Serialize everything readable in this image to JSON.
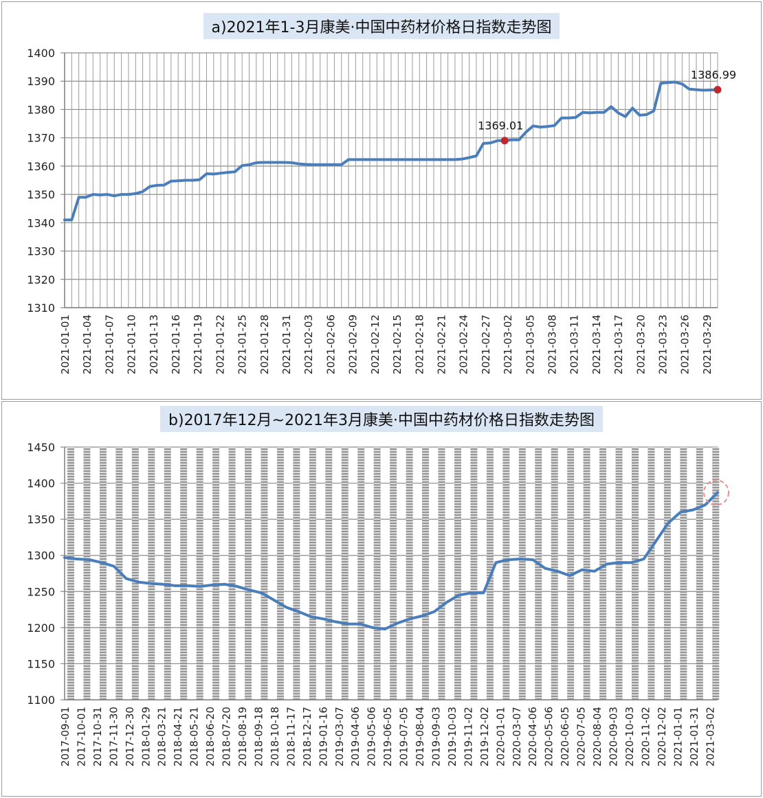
{
  "chart_data": [
    {
      "id": "a",
      "type": "line",
      "title": "a)2021年1-3月康美·中国中药材价格日指数走势图",
      "xlabel": "",
      "ylabel": "",
      "ylim": [
        1310,
        1400
      ],
      "yticks": [
        1310,
        1320,
        1330,
        1340,
        1350,
        1360,
        1370,
        1380,
        1390,
        1400
      ],
      "grid": true,
      "line_color": "#4a7ebb",
      "marker_color": "#c0272d",
      "x_tick_labels": [
        "2021-01-01",
        "2021-01-04",
        "2021-01-07",
        "2021-01-10",
        "2021-01-13",
        "2021-01-16",
        "2021-01-19",
        "2021-01-22",
        "2021-01-25",
        "2021-01-28",
        "2021-01-31",
        "2021-02-03",
        "2021-02-06",
        "2021-02-09",
        "2021-02-12",
        "2021-02-15",
        "2021-02-18",
        "2021-02-21",
        "2021-02-24",
        "2021-02-27",
        "2021-03-02",
        "2021-03-05",
        "2021-03-08",
        "2021-03-11",
        "2021-03-14",
        "2021-03-17",
        "2021-03-20",
        "2021-03-23",
        "2021-03-26",
        "2021-03-29"
      ],
      "series": [
        {
          "values": [
            1341,
            1341,
            1349,
            1349,
            1350,
            1349.8,
            1350,
            1349.5,
            1350,
            1350,
            1350.3,
            1351,
            1352.8,
            1353.2,
            1353.3,
            1354.7,
            1354.8,
            1355,
            1355,
            1355.2,
            1357.3,
            1357.2,
            1357.5,
            1357.8,
            1358,
            1360.2,
            1360.5,
            1361.2,
            1361.3,
            1361.3,
            1361.3,
            1361.3,
            1361.2,
            1360.8,
            1360.6,
            1360.5,
            1360.5,
            1360.5,
            1360.5,
            1360.5,
            1362.3,
            1362.3,
            1362.3,
            1362.3,
            1362.3,
            1362.3,
            1362.3,
            1362.3,
            1362.3,
            1362.3,
            1362.3,
            1362.3,
            1362.3,
            1362.3,
            1362.3,
            1362.3,
            1362.5,
            1363,
            1363.6,
            1368,
            1368.2,
            1369,
            1369.01,
            1369.3,
            1369.3,
            1372,
            1374.2,
            1373.8,
            1374,
            1374.3,
            1377,
            1377,
            1377.2,
            1379,
            1378.8,
            1379,
            1379,
            1381,
            1378.8,
            1377.5,
            1380.5,
            1378,
            1378.2,
            1379.5,
            1389.3,
            1389.5,
            1389.7,
            1389,
            1387.2,
            1387,
            1386.8,
            1386.9,
            1386.99
          ]
        }
      ],
      "annotations": [
        {
          "label": "1369.01",
          "index": 62,
          "value": 1369.01
        },
        {
          "label": "1386.99",
          "index": 92,
          "value": 1386.99
        }
      ]
    },
    {
      "id": "b",
      "type": "line",
      "title": "b)2017年12月~2021年3月康美·中国中药材价格日指数走势图",
      "xlabel": "",
      "ylabel": "",
      "ylim": [
        1100,
        1450
      ],
      "yticks": [
        1100,
        1150,
        1200,
        1250,
        1300,
        1350,
        1400,
        1450
      ],
      "grid": true,
      "line_color": "#4a7ebb",
      "highlight_color": "#e8908c",
      "x_tick_labels": [
        "2017-09-01",
        "2017-10-01",
        "2017-10-31",
        "2017-11-30",
        "2017-12-30",
        "2018-01-29",
        "2018-03-21",
        "2018-04-21",
        "2018-05-21",
        "2018-06-20",
        "2018-07-20",
        "2018-08-19",
        "2018-09-18",
        "2018-10-18",
        "2018-11-17",
        "2018-12-17",
        "2019-01-16",
        "2019-03-07",
        "2019-04-06",
        "2019-05-06",
        "2019-06-05",
        "2019-07-05",
        "2019-08-04",
        "2019-09-03",
        "2019-10-03",
        "2019-11-02",
        "2019-12-02",
        "2020-01-01",
        "2020-03-07",
        "2020-04-06",
        "2020-05-06",
        "2020-06-05",
        "2020-07-05",
        "2020-08-04",
        "2020-09-03",
        "2020-10-03",
        "2020-11-02",
        "2020-12-02",
        "2021-01-01",
        "2021-01-31",
        "2021-03-02"
      ],
      "series": [
        {
          "values": [
            1297,
            1295,
            1294,
            1290,
            1285,
            1268,
            1263,
            1261,
            1260,
            1258,
            1258,
            1257,
            1259,
            1260,
            1257,
            1252,
            1248,
            1238,
            1228,
            1222,
            1215,
            1212,
            1208,
            1205,
            1205,
            1200,
            1198,
            1206,
            1212,
            1216,
            1222,
            1235,
            1245,
            1248,
            1248,
            1290,
            1294,
            1295,
            1294,
            1282,
            1278,
            1272,
            1280,
            1278,
            1288,
            1290,
            1290,
            1295,
            1320,
            1345,
            1360,
            1363,
            1370,
            1387
          ]
        }
      ]
    }
  ]
}
